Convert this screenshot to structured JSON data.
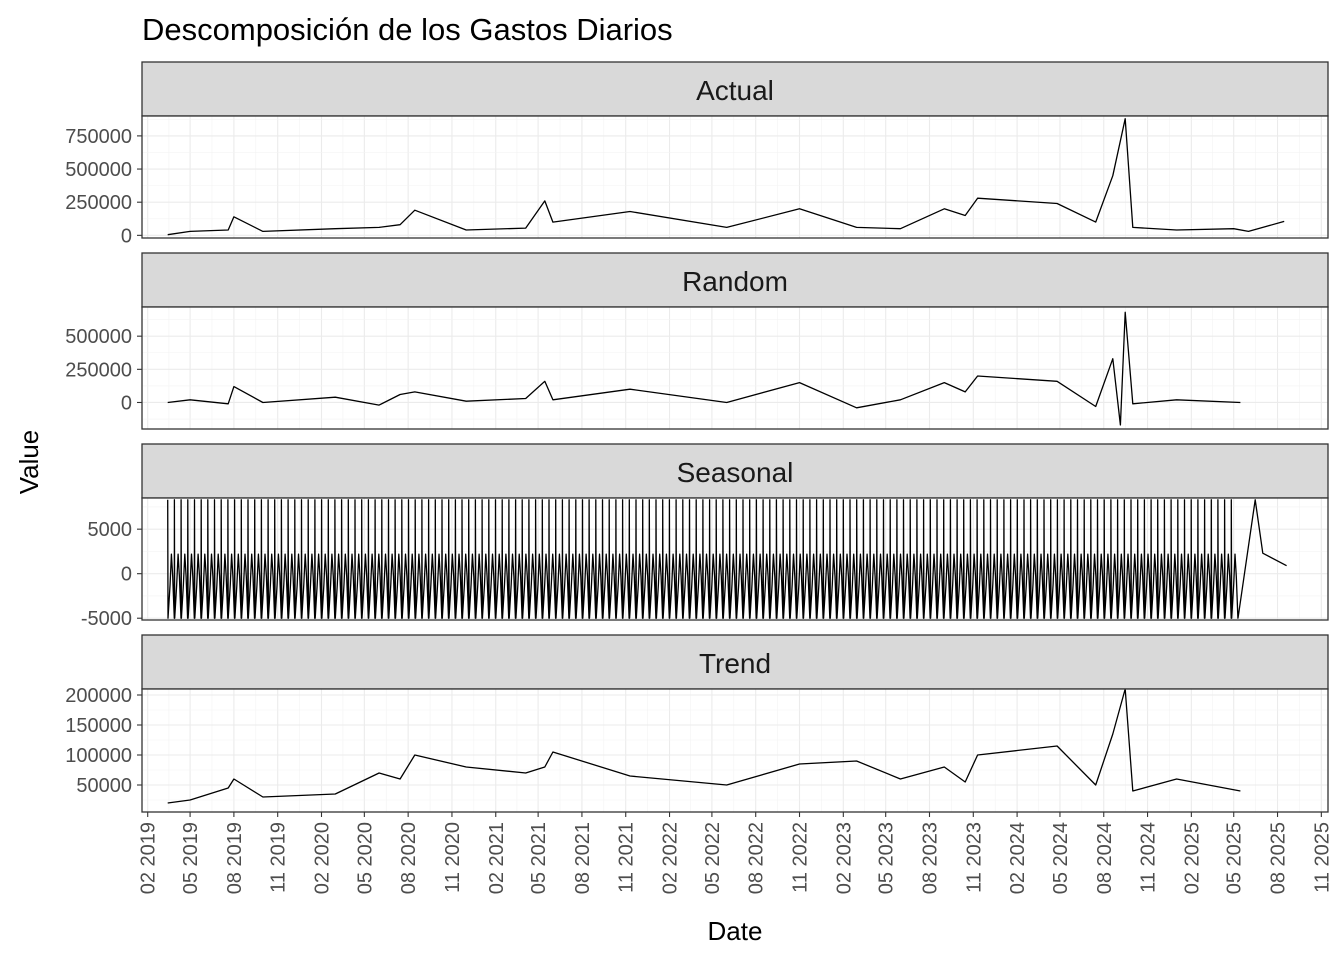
{
  "chart_data": {
    "type": "line",
    "title": "Descomposición de los Gastos Diarios",
    "xlabel": "Date",
    "ylabel": "Value",
    "grid": true,
    "x_range": [
      "2019-01-20",
      "2025-11-15"
    ],
    "x_tick_labels": [
      "02 2019",
      "05 2019",
      "08 2019",
      "11 2019",
      "02 2020",
      "05 2020",
      "08 2020",
      "11 2020",
      "02 2021",
      "05 2021",
      "08 2021",
      "11 2021",
      "02 2022",
      "05 2022",
      "08 2022",
      "11 2022",
      "02 2023",
      "05 2023",
      "08 2023",
      "11 2023",
      "02 2024",
      "05 2024",
      "08 2024",
      "11 2024",
      "02 2025",
      "05 2025",
      "08 2025",
      "11 2025"
    ],
    "panels": [
      {
        "name": "Actual",
        "ylim": [
          -20000,
          900000
        ],
        "y_ticks": [
          0,
          250000,
          500000,
          750000
        ],
        "y_tick_labels": [
          "0",
          "250000",
          "500000",
          "750000"
        ],
        "x": [
          "2019-03-15",
          "2019-05-01",
          "2019-07-20",
          "2019-08-01",
          "2019-10-01",
          "2020-03-01",
          "2020-06-01",
          "2020-07-15",
          "2020-08-15",
          "2020-12-01",
          "2021-04-05",
          "2021-05-15",
          "2021-06-01",
          "2021-11-10",
          "2022-06-01",
          "2022-11-01",
          "2023-03-01",
          "2023-06-01",
          "2023-09-01",
          "2023-10-15",
          "2023-11-10",
          "2024-04-25",
          "2024-07-15",
          "2024-08-20",
          "2024-09-15",
          "2024-10-01",
          "2025-01-01",
          "2025-05-01",
          "2025-06-01",
          "2025-07-01",
          "2025-08-15"
        ],
        "values": [
          5000,
          30000,
          40000,
          140000,
          30000,
          50000,
          60000,
          80000,
          190000,
          40000,
          55000,
          260000,
          100000,
          180000,
          60000,
          200000,
          60000,
          50000,
          200000,
          150000,
          280000,
          240000,
          100000,
          450000,
          880000,
          60000,
          40000,
          50000,
          30000,
          60000,
          105000
        ]
      },
      {
        "name": "Random",
        "ylim": [
          -200000,
          720000
        ],
        "y_ticks": [
          0,
          250000,
          500000
        ],
        "y_tick_labels": [
          "0",
          "250000",
          "500000"
        ],
        "x": [
          "2019-03-15",
          "2019-05-01",
          "2019-07-20",
          "2019-08-01",
          "2019-10-01",
          "2020-03-01",
          "2020-06-01",
          "2020-07-15",
          "2020-08-15",
          "2020-12-01",
          "2021-04-05",
          "2021-05-15",
          "2021-06-01",
          "2021-11-10",
          "2022-06-01",
          "2022-11-01",
          "2023-03-01",
          "2023-06-01",
          "2023-09-01",
          "2023-10-15",
          "2023-11-10",
          "2024-04-25",
          "2024-07-15",
          "2024-08-20",
          "2024-09-05",
          "2024-09-15",
          "2024-10-01",
          "2025-01-01",
          "2025-05-15"
        ],
        "values": [
          0,
          20000,
          -10000,
          120000,
          0,
          40000,
          -20000,
          60000,
          80000,
          10000,
          30000,
          160000,
          20000,
          100000,
          0,
          150000,
          -40000,
          20000,
          150000,
          80000,
          200000,
          160000,
          -30000,
          330000,
          -170000,
          680000,
          -10000,
          20000,
          0
        ]
      },
      {
        "name": "Seasonal",
        "ylim": [
          -5200,
          8500
        ],
        "y_ticks": [
          -5000,
          0,
          5000
        ],
        "y_tick_labels": [
          "-5000",
          "0",
          "5000"
        ],
        "max": 8300,
        "min": -5000,
        "tail_x": [
          "2025-05-10",
          "2025-06-15",
          "2025-07-01",
          "2025-08-20"
        ],
        "tail_values": [
          -5000,
          8300,
          2300,
          900
        ]
      },
      {
        "name": "Trend",
        "ylim": [
          5000,
          210000
        ],
        "y_ticks": [
          50000,
          100000,
          150000,
          200000
        ],
        "y_tick_labels": [
          "50000",
          "100000",
          "150000",
          "200000"
        ],
        "x": [
          "2019-03-15",
          "2019-05-01",
          "2019-07-20",
          "2019-08-01",
          "2019-10-01",
          "2020-03-01",
          "2020-06-01",
          "2020-07-15",
          "2020-08-15",
          "2020-12-01",
          "2021-04-05",
          "2021-05-15",
          "2021-06-01",
          "2021-11-10",
          "2022-06-01",
          "2022-11-01",
          "2023-03-01",
          "2023-06-01",
          "2023-09-01",
          "2023-10-15",
          "2023-11-10",
          "2024-04-25",
          "2024-07-15",
          "2024-08-20",
          "2024-09-15",
          "2024-10-01",
          "2025-01-01",
          "2025-05-15"
        ],
        "values": [
          20000,
          25000,
          45000,
          60000,
          30000,
          35000,
          70000,
          60000,
          100000,
          80000,
          70000,
          80000,
          105000,
          65000,
          50000,
          85000,
          90000,
          60000,
          80000,
          55000,
          100000,
          115000,
          50000,
          135000,
          210000,
          40000,
          60000,
          40000
        ]
      }
    ]
  }
}
